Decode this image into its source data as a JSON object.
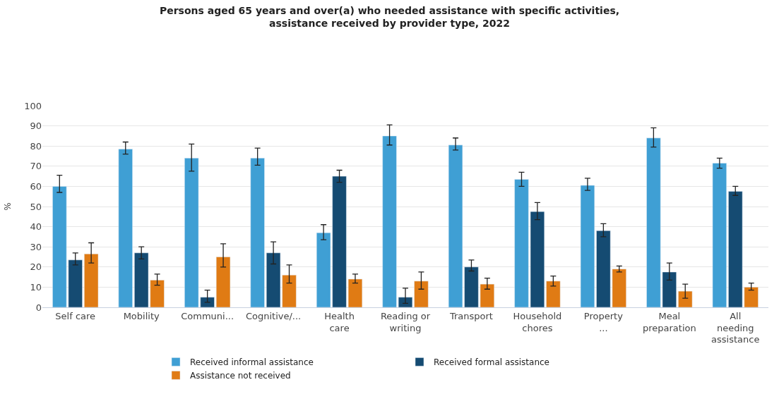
{
  "chart_data": {
    "type": "bar",
    "title": "Persons aged 65 years and over(a) who needed assistance with specific activities, assistance received by provider type, 2022",
    "ylabel": "%",
    "categories": [
      "Self care",
      "Mobility",
      "Communi...",
      "Cognitive/...",
      "Health care",
      "Reading or writing",
      "Transport",
      "Household chores",
      "Property ...",
      "Meal preparation",
      "All needing assistance"
    ],
    "series": [
      {
        "name": "Received informal assistance",
        "color": "#3f9fd4",
        "values": [
          60,
          78.5,
          74,
          74,
          37,
          85,
          80.5,
          63.5,
          60.5,
          84,
          71.5
        ],
        "errors": [
          [
            57,
            65.5
          ],
          [
            76,
            82
          ],
          [
            67.5,
            81
          ],
          [
            70.5,
            79
          ],
          [
            33.5,
            41
          ],
          [
            80.5,
            90.5
          ],
          [
            78,
            84
          ],
          [
            60,
            67
          ],
          [
            58,
            64
          ],
          [
            79.5,
            89
          ],
          [
            69,
            74
          ]
        ]
      },
      {
        "name": "Received formal assistance",
        "color": "#154b72",
        "values": [
          23.5,
          27,
          5,
          27,
          65,
          5,
          20,
          47.5,
          38,
          17.5,
          57.5
        ],
        "errors": [
          [
            21,
            27
          ],
          [
            24,
            30
          ],
          [
            2.5,
            8.5
          ],
          [
            21.5,
            32.5
          ],
          [
            62,
            68
          ],
          [
            2,
            9.5
          ],
          [
            18,
            23.5
          ],
          [
            43.5,
            52
          ],
          [
            35,
            41.5
          ],
          [
            13.5,
            22
          ],
          [
            55.5,
            60
          ]
        ]
      },
      {
        "name": "Assistance not received",
        "color": "#e07b14",
        "values": [
          26.5,
          13.5,
          25,
          16,
          14,
          13,
          11.5,
          13,
          19,
          8,
          10
        ],
        "errors": [
          [
            22,
            32
          ],
          [
            11,
            16.5
          ],
          [
            20,
            31.5
          ],
          [
            12,
            21
          ],
          [
            12,
            16.5
          ],
          [
            9,
            17.5
          ],
          [
            9,
            14.5
          ],
          [
            10.5,
            15.5
          ],
          [
            17.5,
            20.5
          ],
          [
            4.5,
            11.5
          ],
          [
            8.5,
            12
          ]
        ]
      }
    ],
    "ylim": [
      0,
      100
    ],
    "yticks": [
      0,
      10,
      20,
      30,
      40,
      50,
      60,
      70,
      80,
      90,
      100
    ],
    "grid": "y",
    "legend": "bottom"
  }
}
